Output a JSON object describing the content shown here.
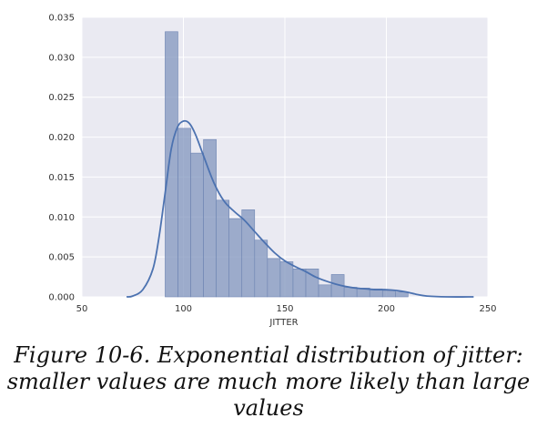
{
  "chart_data": {
    "type": "bar",
    "xlabel": "JITTER",
    "ylabel": "",
    "xlim": [
      50,
      250
    ],
    "ylim": [
      0,
      0.035
    ],
    "x_ticks": [
      50,
      100,
      150,
      200,
      250
    ],
    "y_ticks": [
      0.0,
      0.005,
      0.01,
      0.015,
      0.02,
      0.025,
      0.03,
      0.035
    ],
    "y_tick_labels": [
      "0.000",
      "0.005",
      "0.010",
      "0.015",
      "0.020",
      "0.025",
      "0.030",
      "0.035"
    ],
    "grid": true,
    "bins": [
      {
        "x0": 91,
        "x1": 97.3,
        "density": 0.0332
      },
      {
        "x0": 97.3,
        "x1": 103.6,
        "density": 0.0211
      },
      {
        "x0": 103.6,
        "x1": 109.9,
        "density": 0.018
      },
      {
        "x0": 109.9,
        "x1": 116.2,
        "density": 0.0197
      },
      {
        "x0": 116.2,
        "x1": 122.5,
        "density": 0.0121
      },
      {
        "x0": 122.5,
        "x1": 128.8,
        "density": 0.0098
      },
      {
        "x0": 128.8,
        "x1": 135.1,
        "density": 0.0109
      },
      {
        "x0": 135.1,
        "x1": 141.4,
        "density": 0.0071
      },
      {
        "x0": 141.4,
        "x1": 147.7,
        "density": 0.0048
      },
      {
        "x0": 147.7,
        "x1": 154.0,
        "density": 0.0044
      },
      {
        "x0": 154.0,
        "x1": 160.3,
        "density": 0.0035
      },
      {
        "x0": 160.3,
        "x1": 166.6,
        "density": 0.0035
      },
      {
        "x0": 166.6,
        "x1": 172.9,
        "density": 0.0015
      },
      {
        "x0": 172.9,
        "x1": 179.2,
        "density": 0.0028
      },
      {
        "x0": 179.2,
        "x1": 185.5,
        "density": 0.0012
      },
      {
        "x0": 185.5,
        "x1": 191.8,
        "density": 0.0011
      },
      {
        "x0": 191.8,
        "x1": 198.1,
        "density": 0.001
      },
      {
        "x0": 198.1,
        "x1": 204.4,
        "density": 0.0008
      },
      {
        "x0": 204.4,
        "x1": 210.7,
        "density": 0.0006
      }
    ],
    "kde": {
      "x": [
        72,
        75,
        80,
        85,
        88,
        91,
        94,
        97,
        100,
        103,
        106,
        110,
        115,
        120,
        125,
        130,
        135,
        140,
        145,
        150,
        155,
        160,
        165,
        170,
        175,
        180,
        185,
        190,
        195,
        200,
        205,
        210,
        215,
        220,
        230,
        243
      ],
      "y": [
        0.0,
        0.0001,
        0.0009,
        0.0035,
        0.0075,
        0.013,
        0.0185,
        0.0212,
        0.022,
        0.0217,
        0.0203,
        0.0176,
        0.0143,
        0.012,
        0.0107,
        0.0096,
        0.0082,
        0.0068,
        0.0055,
        0.0045,
        0.0038,
        0.0032,
        0.0025,
        0.002,
        0.0016,
        0.0013,
        0.0011,
        0.001,
        0.0009,
        0.0009,
        0.0008,
        0.0006,
        0.0003,
        0.0001,
        0.0,
        0.0
      ]
    },
    "colors": {
      "bar_fill": "#8196bd",
      "bar_stroke": "#6f86b3",
      "kde_line": "#4c72b0",
      "plot_bg": "#eaeaf2",
      "grid": "#ffffff"
    }
  },
  "caption": "Figure 10-6. Exponential distribution of jitter: smaller values are much more likely than large values"
}
